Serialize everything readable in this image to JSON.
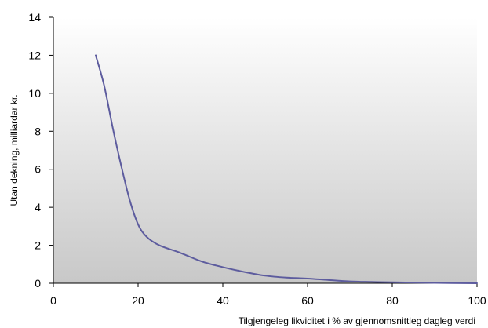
{
  "chart_data": {
    "type": "line",
    "title": "",
    "xlabel": "Tilgjengeleg likviditet i % av gjennomsnittleg dagleg verdi",
    "ylabel": "Utan dekning, milliardar kr.",
    "xlim": [
      0,
      100
    ],
    "ylim": [
      0,
      14
    ],
    "xticks": [
      "0",
      "20",
      "40",
      "60",
      "80",
      "100"
    ],
    "yticks": [
      "0",
      "2",
      "4",
      "6",
      "8",
      "10",
      "12",
      "14"
    ],
    "grid": false,
    "legend": "none",
    "series": [
      {
        "color": "#5d5c9e",
        "x": [
          10,
          12,
          14,
          16,
          18,
          20,
          22,
          25,
          30,
          35,
          40,
          45,
          50,
          55,
          60,
          65,
          70,
          75,
          80,
          90,
          100
        ],
        "y": [
          12.0,
          10.4,
          8.2,
          6.2,
          4.4,
          3.1,
          2.45,
          2.0,
          1.6,
          1.15,
          0.85,
          0.6,
          0.4,
          0.3,
          0.25,
          0.17,
          0.1,
          0.07,
          0.05,
          0.02,
          0.0
        ]
      }
    ]
  }
}
